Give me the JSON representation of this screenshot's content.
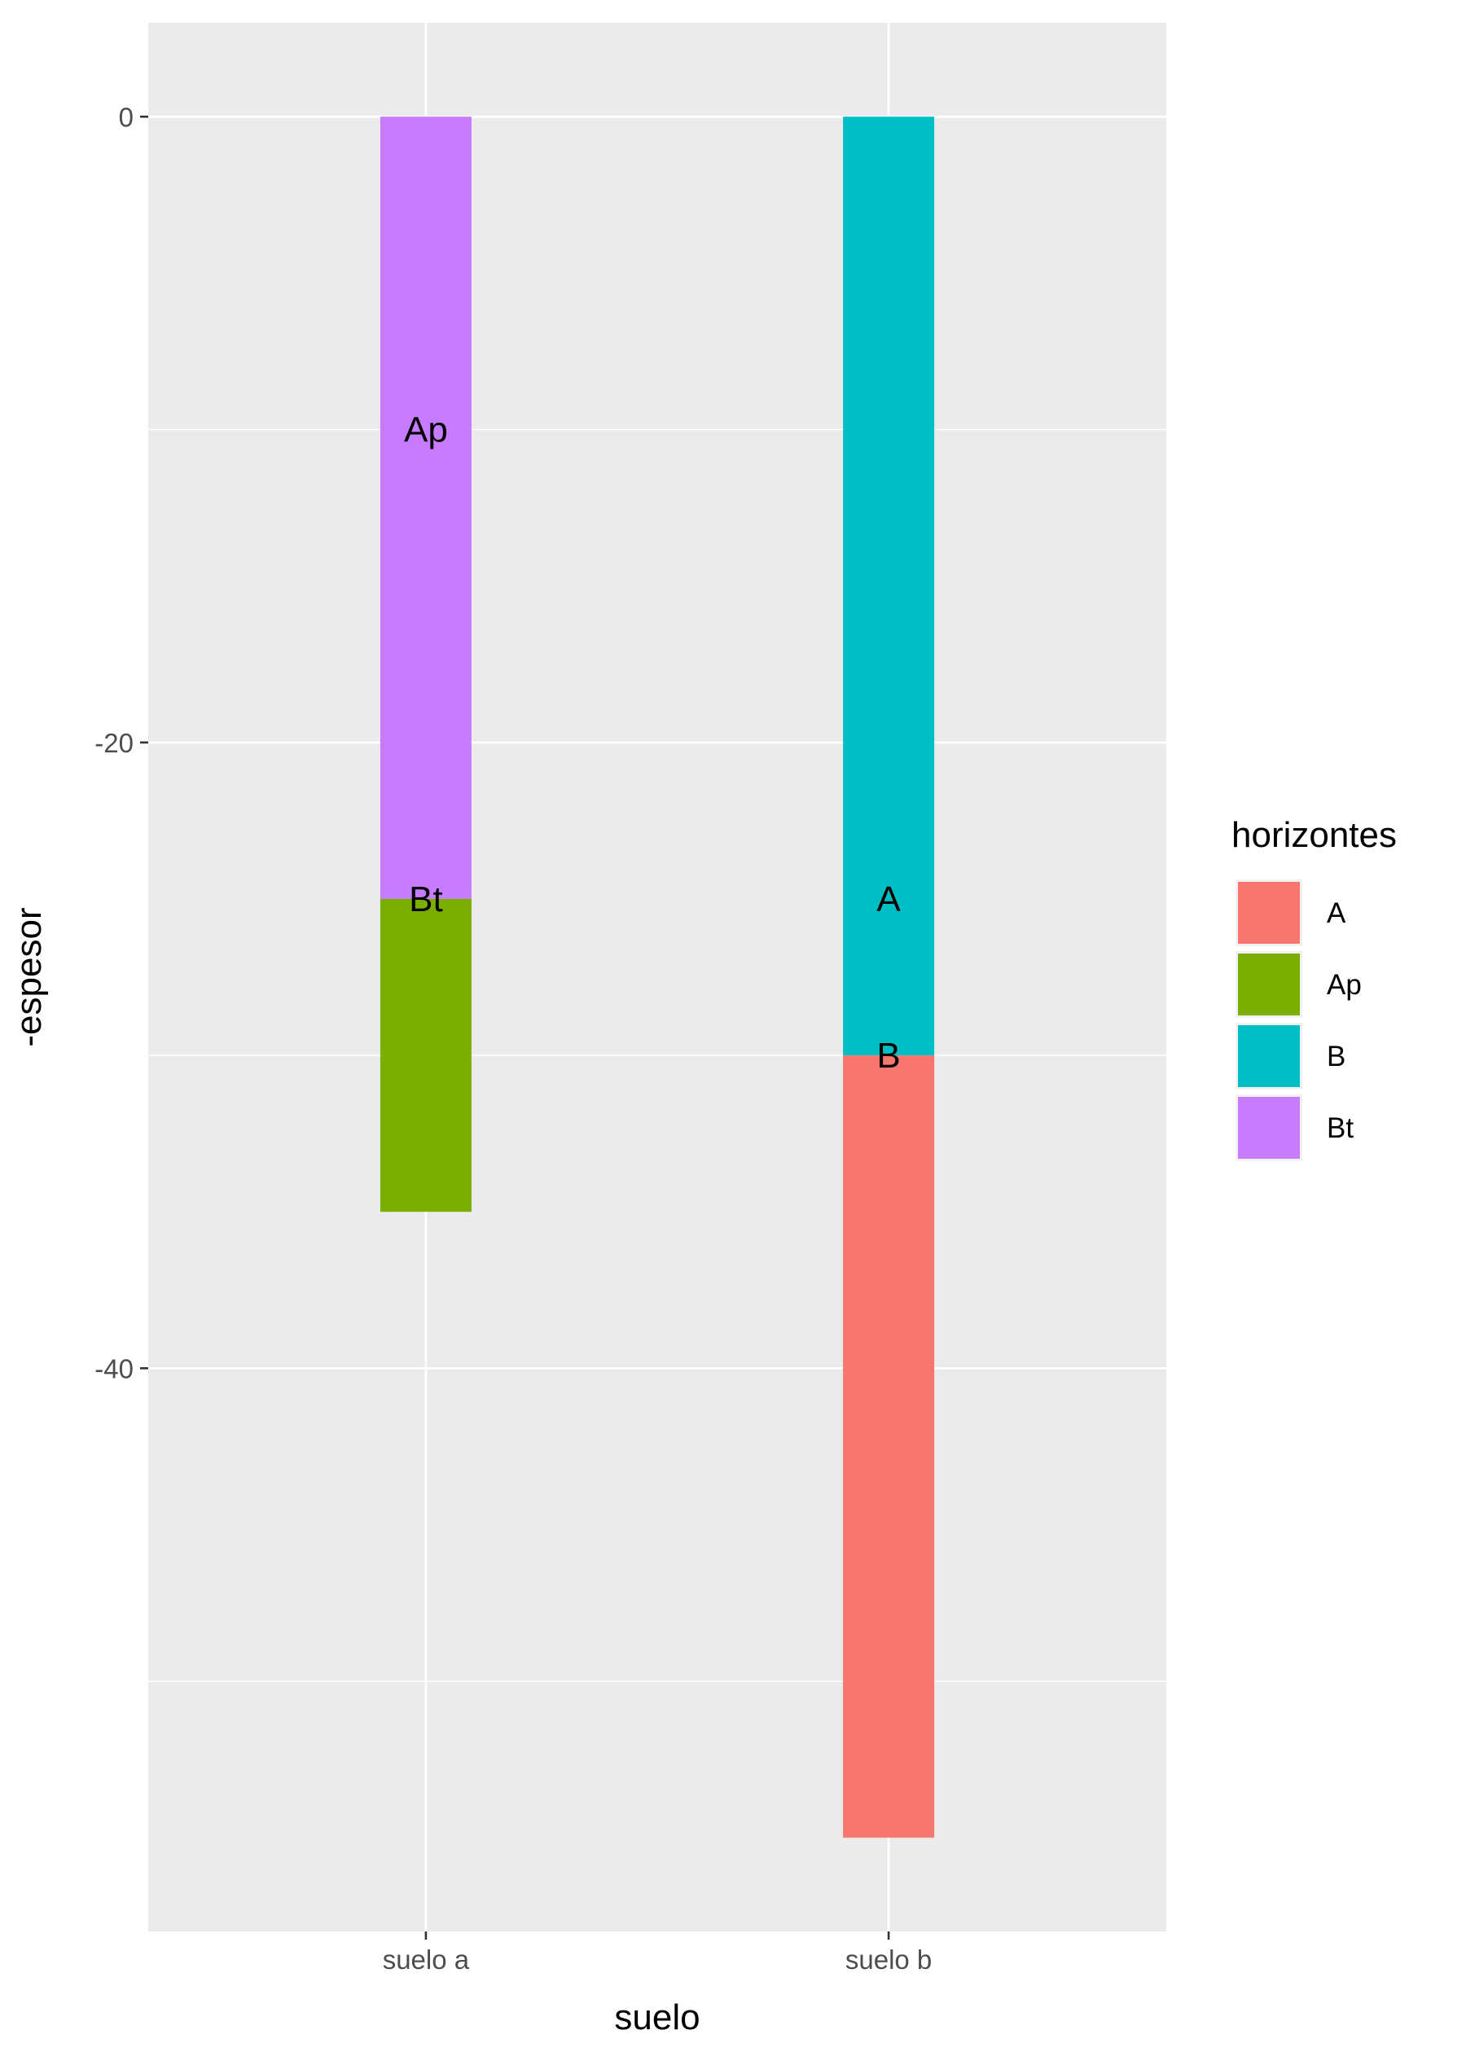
{
  "chart_data": {
    "type": "bar",
    "stacked": true,
    "xlabel": "suelo",
    "ylabel": "-espesor",
    "categories": [
      "suelo a",
      "suelo b"
    ],
    "ylim": [
      -58,
      3
    ],
    "yticks": [
      0,
      -20,
      -40
    ],
    "ytick_labels": [
      "0",
      "-20",
      "-40"
    ],
    "grid": true,
    "legend": {
      "title": "horizontes",
      "placement": "right",
      "entries": [
        {
          "label": "A",
          "color": "#F8766D"
        },
        {
          "label": "Ap",
          "color": "#7CAE00"
        },
        {
          "label": "B",
          "color": "#00BFC4"
        },
        {
          "label": "Bt",
          "color": "#C77CFF"
        }
      ]
    },
    "segments": [
      {
        "category": "suelo a",
        "horizon": "Bt",
        "from": 0,
        "to": -25,
        "color": "#C77CFF"
      },
      {
        "category": "suelo a",
        "horizon": "Ap",
        "from": -25,
        "to": -35,
        "color": "#7CAE00"
      },
      {
        "category": "suelo b",
        "horizon": "B",
        "from": 0,
        "to": -30,
        "color": "#00BFC4"
      },
      {
        "category": "suelo b",
        "horizon": "A",
        "from": -30,
        "to": -55,
        "color": "#F8766D"
      }
    ],
    "annotations": [
      {
        "category": "suelo a",
        "text": "Ap",
        "y": -10
      },
      {
        "category": "suelo a",
        "text": "Bt",
        "y": -25
      },
      {
        "category": "suelo b",
        "text": "A",
        "y": -25
      },
      {
        "category": "suelo b",
        "text": "B",
        "y": -30
      }
    ]
  }
}
